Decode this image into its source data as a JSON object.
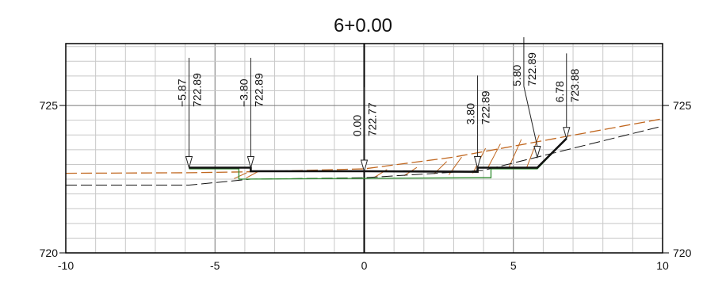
{
  "title": "6+0.00",
  "x_ticks": [
    {
      "value": -10,
      "label": "-10"
    },
    {
      "value": -5,
      "label": "-5"
    },
    {
      "value": 0,
      "label": "0"
    },
    {
      "value": 5,
      "label": "5"
    },
    {
      "value": 10,
      "label": "10"
    }
  ],
  "y_ticks": [
    {
      "value": 720,
      "label": "720"
    },
    {
      "value": 725,
      "label": "725"
    }
  ],
  "axes": {
    "xlim": [
      -10,
      10
    ],
    "ylim": [
      720,
      727.1
    ],
    "grid": true
  },
  "colors": {
    "grid": "#c8c8c8",
    "frame": "#000000",
    "finished": "#111111",
    "subgrade": "#2e8b2e",
    "existing_ground": "#c0661e",
    "original": "#111111"
  },
  "annotations": [
    {
      "offset": "−5.87",
      "elevation": "722.89",
      "x": -5.87,
      "y": 722.89,
      "label_x": -5.87,
      "label_base_y": 724.95
    },
    {
      "offset": "−3.80",
      "elevation": "722.89",
      "x": -3.8,
      "y": 722.89,
      "label_x": -3.8,
      "label_base_y": 724.95
    },
    {
      "offset": "0.00",
      "elevation": "722.77",
      "x": 0.0,
      "y": 722.77,
      "label_x": 0.0,
      "label_base_y": 723.95
    },
    {
      "offset": "3.80",
      "elevation": "722.89",
      "x": 3.8,
      "y": 722.89,
      "label_x": 3.8,
      "label_base_y": 724.35
    },
    {
      "offset": "5.80",
      "elevation": "722.89",
      "x": 5.8,
      "y": 723.24,
      "label_x": 5.35,
      "label_base_y": 725.65
    },
    {
      "offset": "6.78",
      "elevation": "723.88",
      "x": 6.78,
      "y": 723.88,
      "label_x": 6.78,
      "label_base_y": 725.1
    }
  ],
  "lines": {
    "finished": [
      [
        -5.87,
        722.89
      ],
      [
        -3.8,
        722.89
      ],
      [
        -3.8,
        722.77
      ],
      [
        0.0,
        722.77
      ],
      [
        3.8,
        722.75
      ],
      [
        3.8,
        722.89
      ],
      [
        5.8,
        722.89
      ],
      [
        6.78,
        723.88
      ]
    ],
    "subgrade": [
      [
        -5.87,
        722.85
      ],
      [
        -4.2,
        722.85
      ],
      [
        -4.2,
        722.5
      ],
      [
        3.9,
        722.55
      ],
      [
        4.25,
        722.55
      ],
      [
        4.25,
        722.85
      ],
      [
        5.8,
        722.85
      ],
      [
        6.78,
        723.88
      ]
    ],
    "existing_ground": [
      [
        -10,
        722.7
      ],
      [
        -5.87,
        722.72
      ],
      [
        -3.8,
        722.75
      ],
      [
        0.0,
        722.85
      ],
      [
        3.0,
        723.25
      ],
      [
        10,
        724.55
      ]
    ],
    "original": [
      [
        -10,
        722.3
      ],
      [
        -5.87,
        722.3
      ],
      [
        -3.8,
        722.5
      ],
      [
        0.0,
        722.55
      ],
      [
        4.0,
        722.8
      ],
      [
        10,
        724.3
      ]
    ],
    "hatch_top": [
      [
        -4.2,
        722.72
      ],
      [
        -3.8,
        722.77
      ],
      [
        0.5,
        722.83
      ],
      [
        1.5,
        722.9
      ],
      [
        2.5,
        723.1
      ],
      [
        3.0,
        723.25
      ],
      [
        3.8,
        723.55
      ],
      [
        4.3,
        723.7
      ],
      [
        5.0,
        723.85
      ],
      [
        5.6,
        724.0
      ]
    ],
    "hatch_bottom": [
      [
        -4.2,
        722.52
      ],
      [
        -3.8,
        722.54
      ],
      [
        0.5,
        722.56
      ],
      [
        1.5,
        722.62
      ],
      [
        2.5,
        722.68
      ],
      [
        3.0,
        722.65
      ],
      [
        3.8,
        722.7
      ],
      [
        4.3,
        722.88
      ],
      [
        5.0,
        722.88
      ],
      [
        5.6,
        722.88
      ]
    ]
  }
}
